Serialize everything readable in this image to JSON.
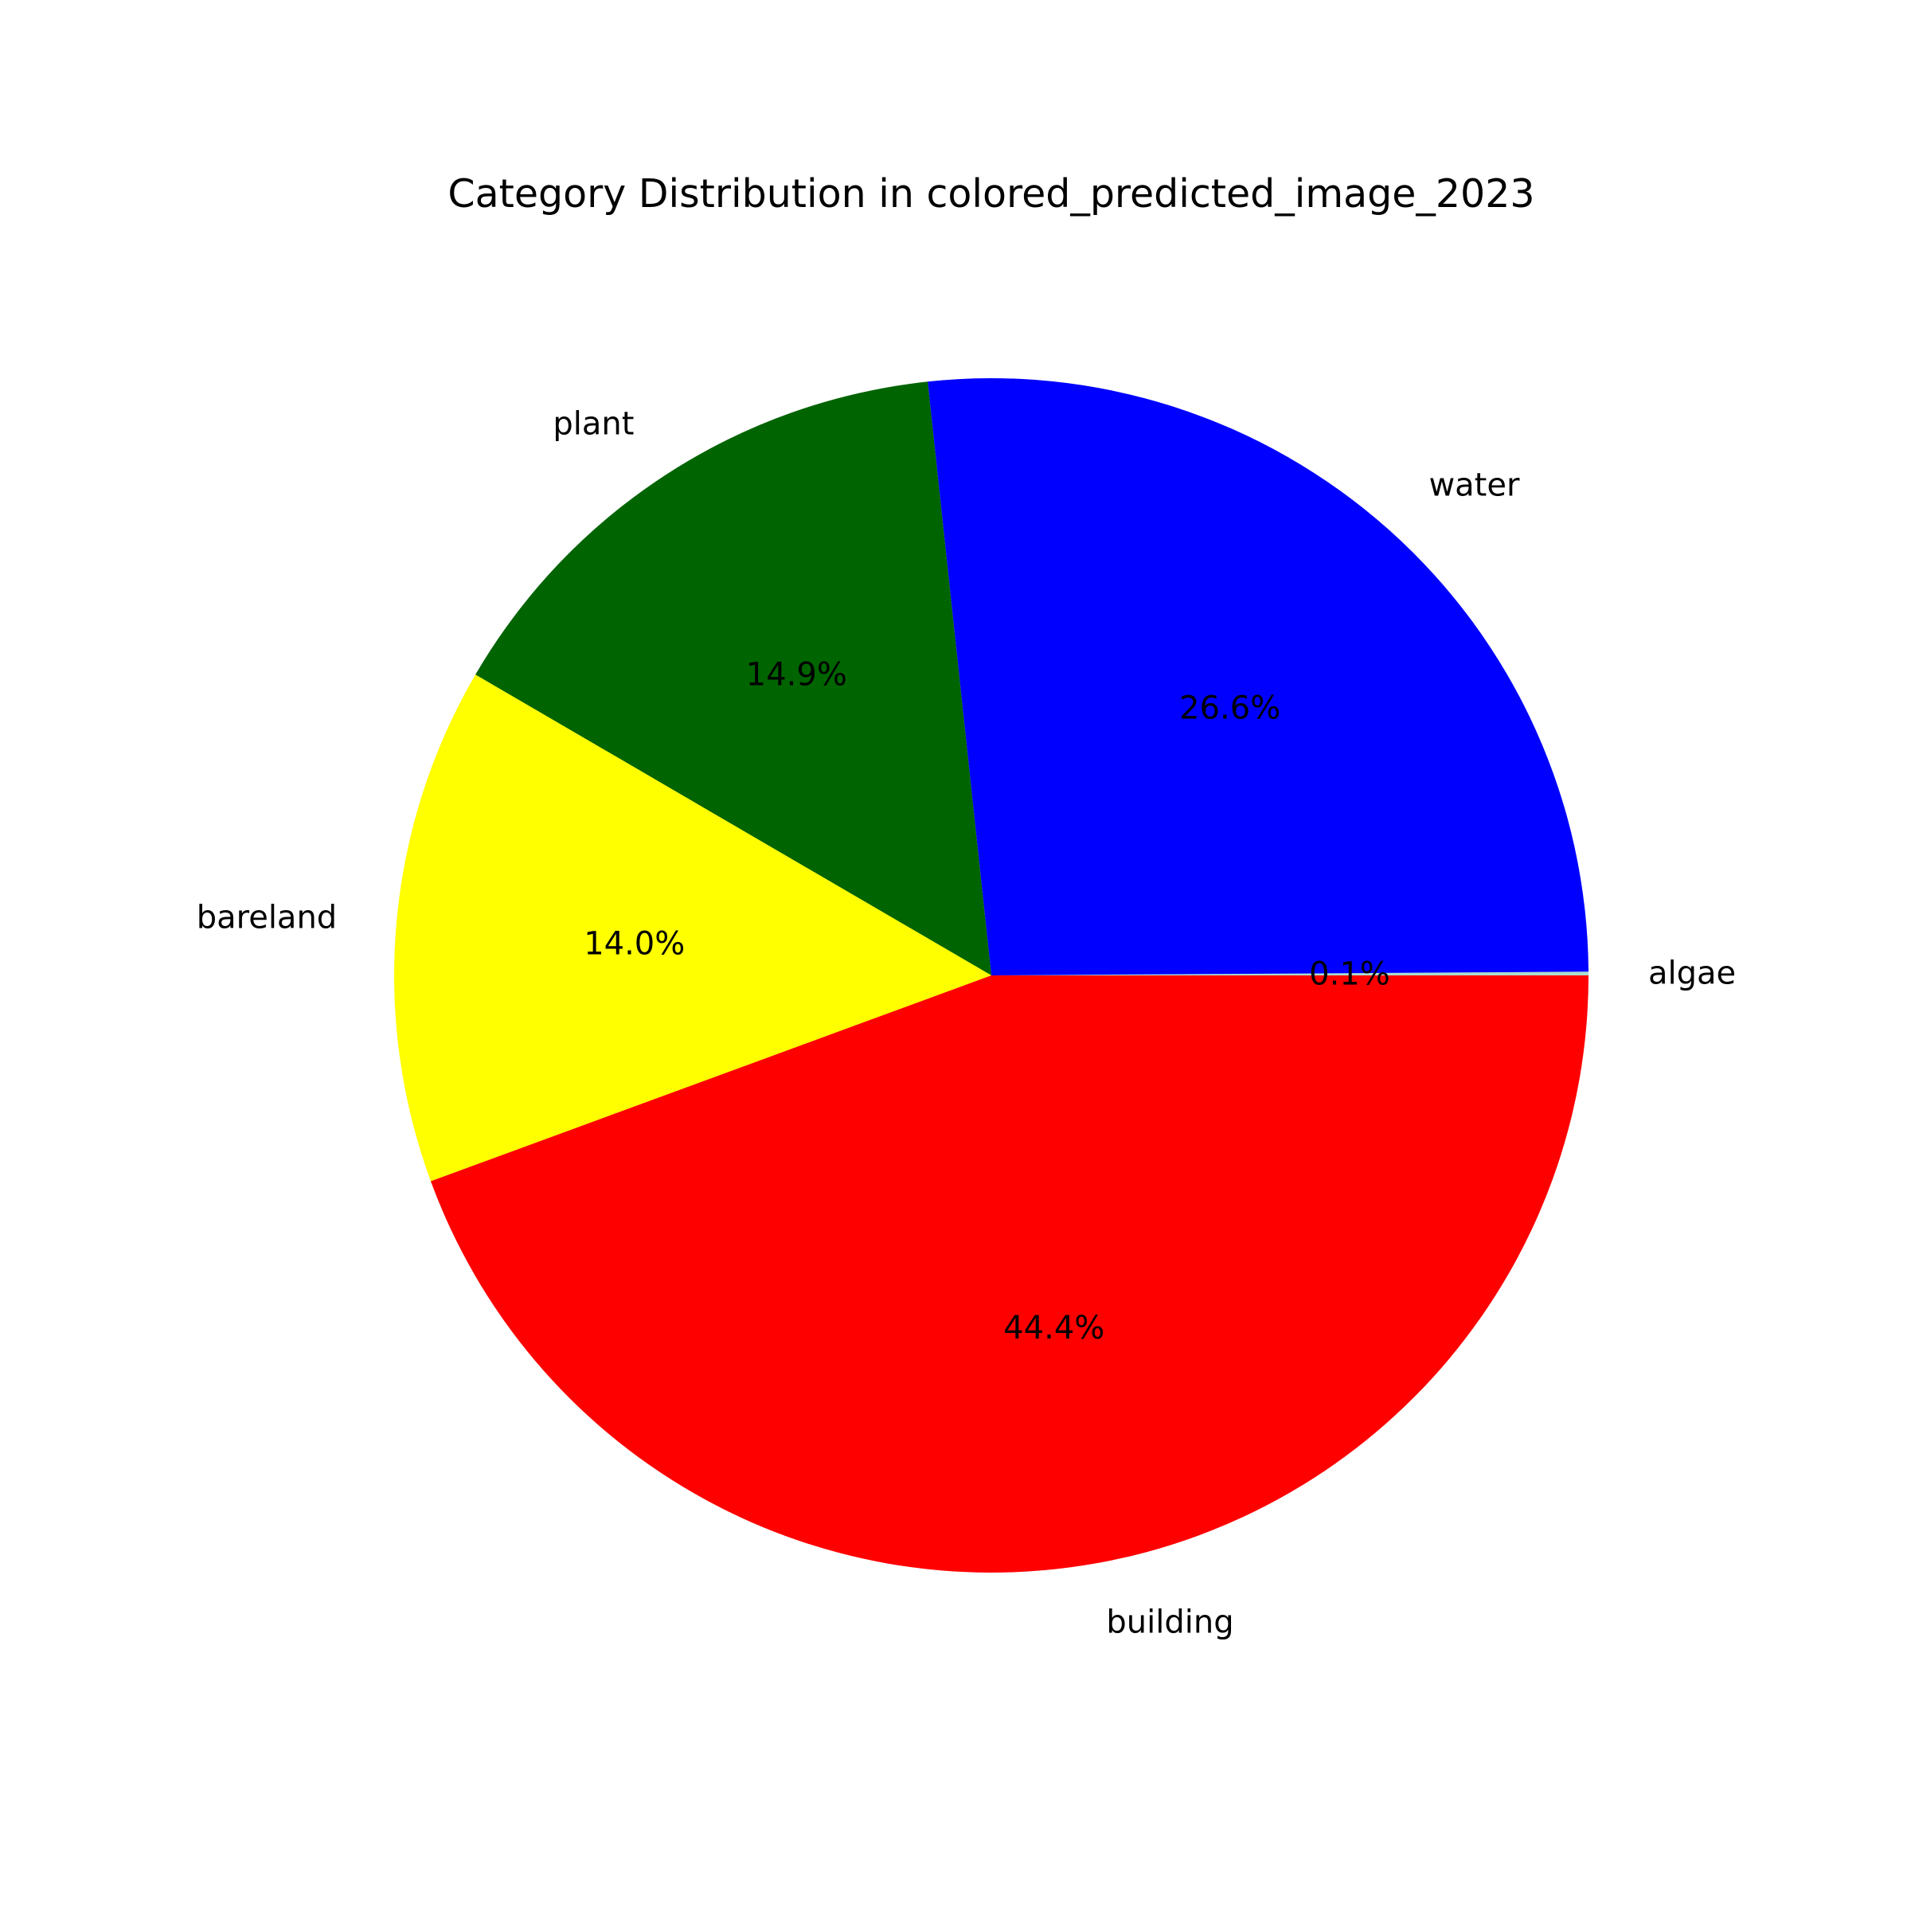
{
  "chart_data": {
    "type": "pie",
    "title": "Category Distribution in colored_predicted_image_2023",
    "slices": [
      {
        "label": "algae",
        "percent": 0.1,
        "percent_label": "0.1%",
        "color": "#aaddcc"
      },
      {
        "label": "water",
        "percent": 26.6,
        "percent_label": "26.6%",
        "color": "#0000ff"
      },
      {
        "label": "plant",
        "percent": 14.9,
        "percent_label": "14.9%",
        "color": "#006400"
      },
      {
        "label": "bareland",
        "percent": 14.0,
        "percent_label": "14.0%",
        "color": "#ffff00"
      },
      {
        "label": "building",
        "percent": 44.4,
        "percent_label": "44.4%",
        "color": "#ff0000"
      }
    ],
    "start_angle": "0 degrees (3 o'clock), counter-clockwise",
    "legend": "none"
  }
}
